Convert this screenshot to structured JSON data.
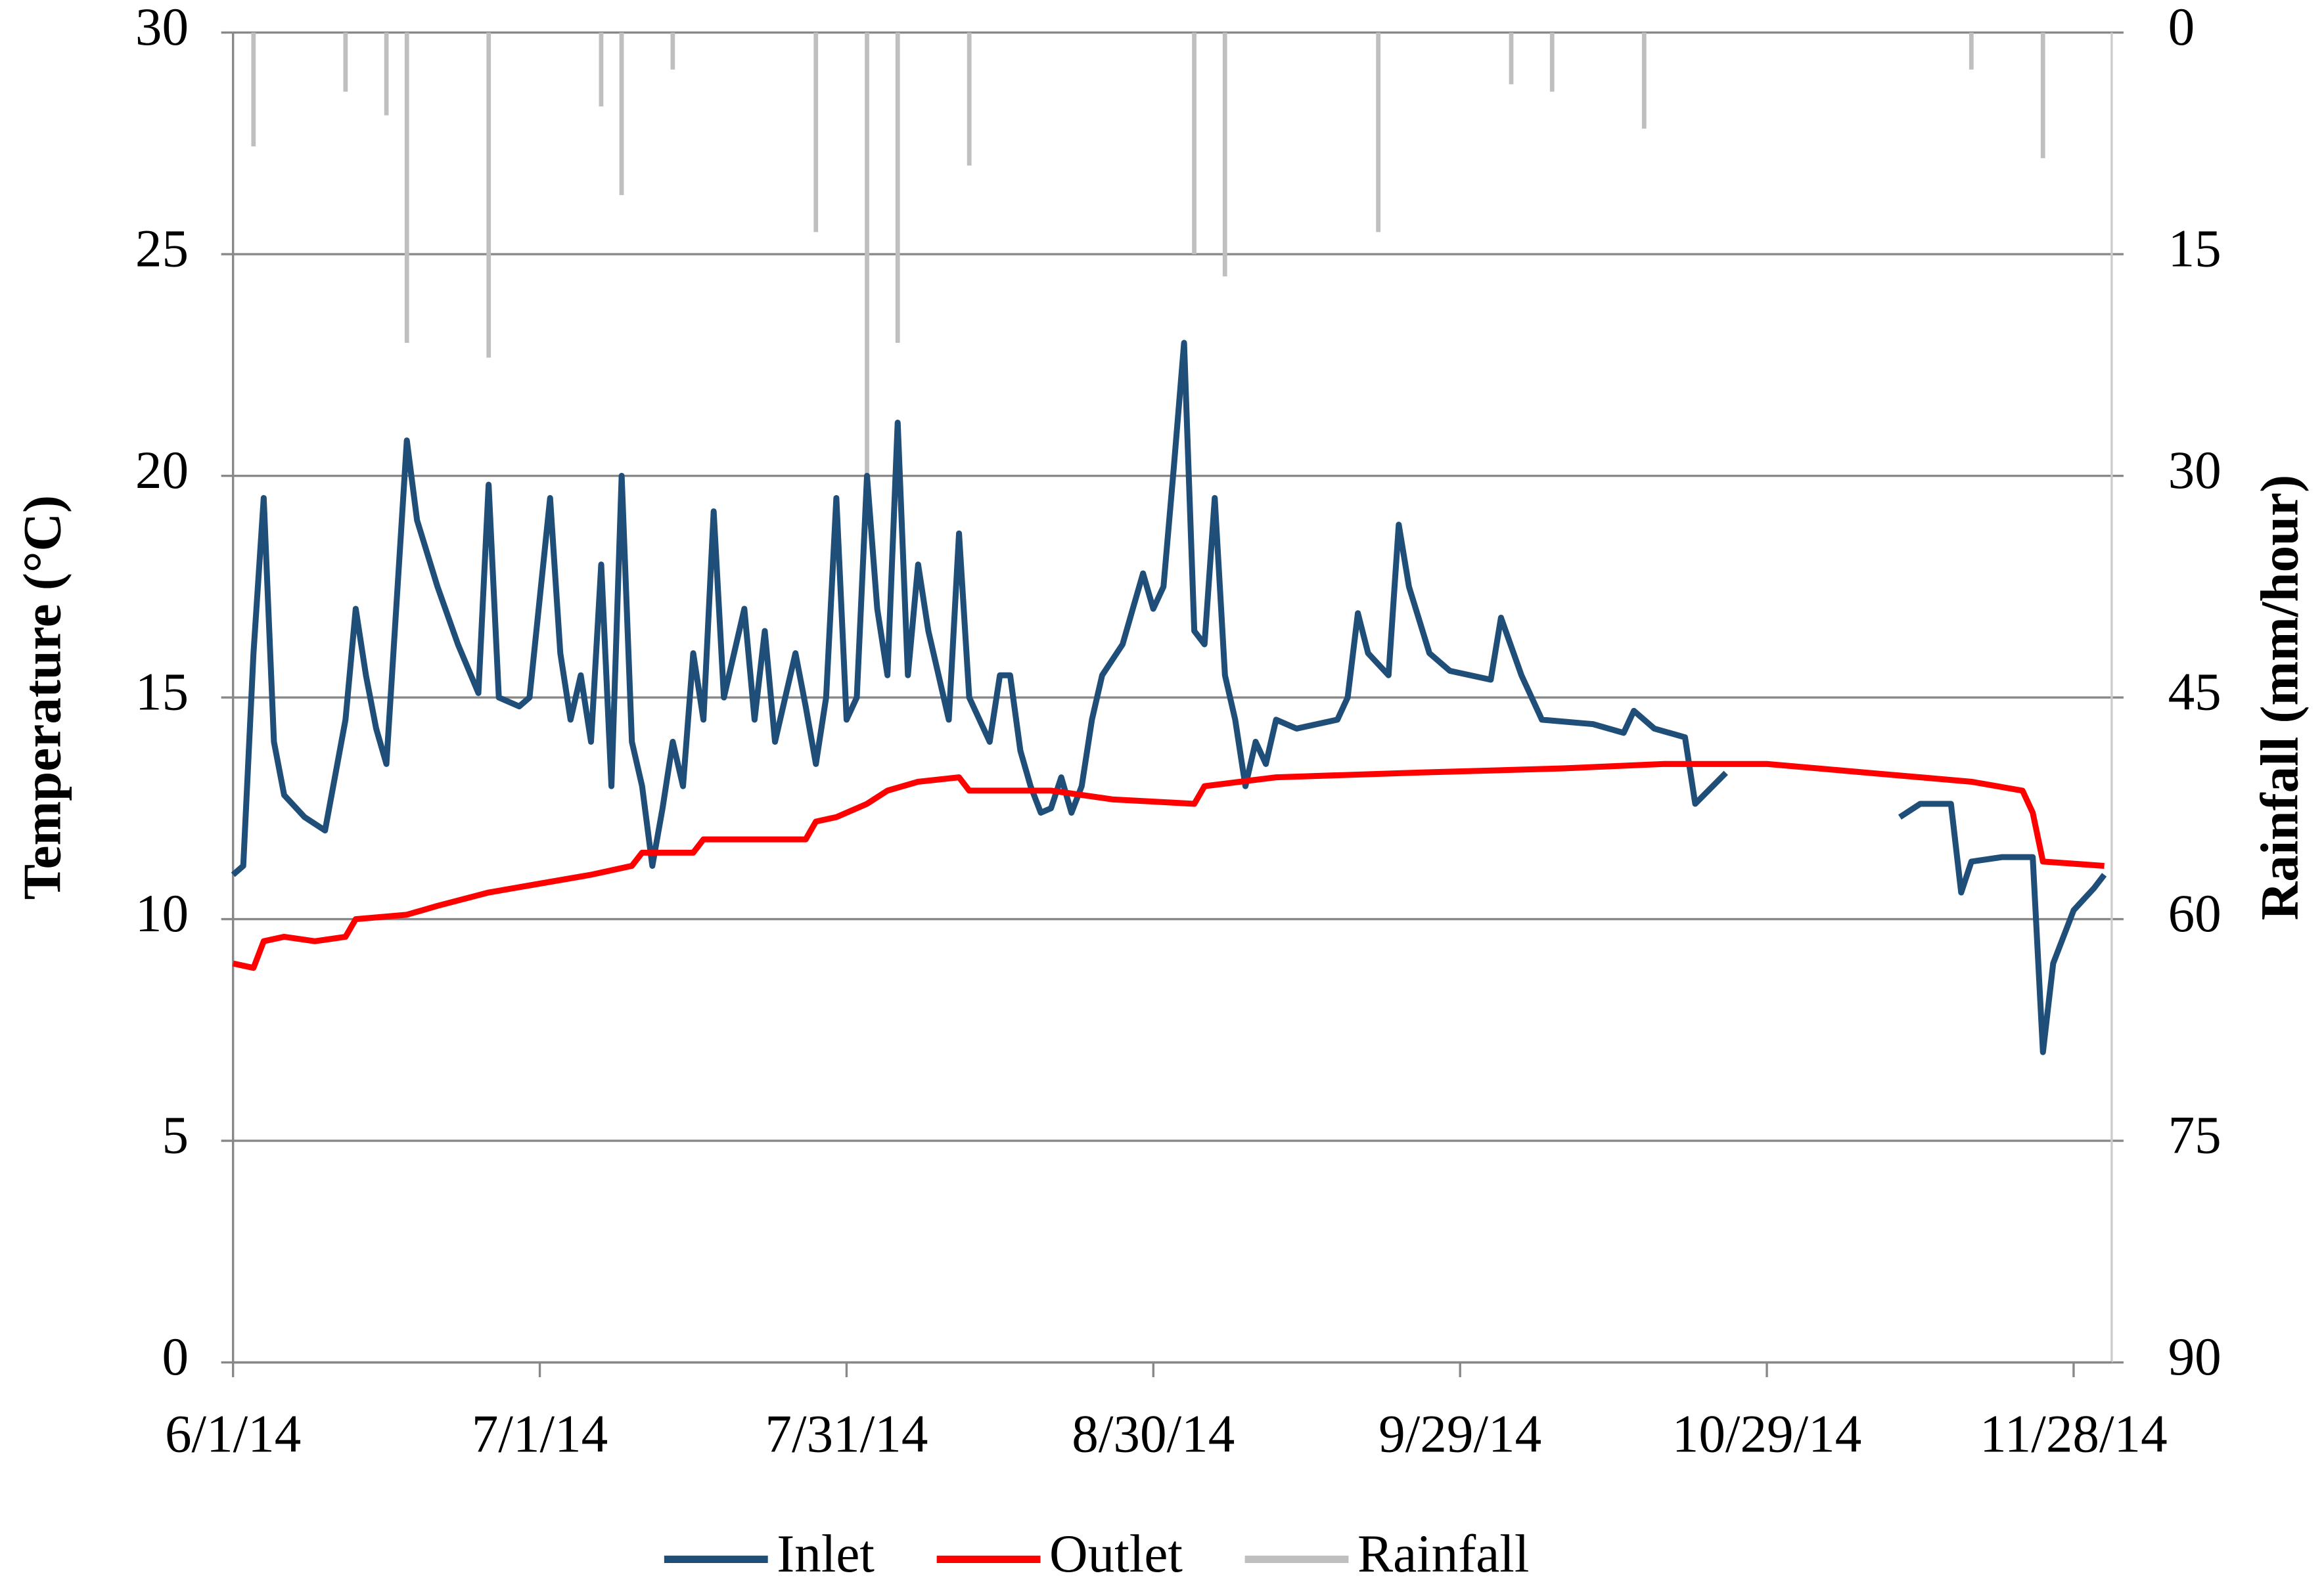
{
  "chart_data": {
    "type": "line",
    "ylabel": "Temperature (°C)",
    "y2label": "Rainfall (mm/hour)",
    "xlim": [
      "6/1/14",
      "12/1/14"
    ],
    "xticks": [
      "6/1/14",
      "7/1/14",
      "7/31/14",
      "8/30/14",
      "9/29/14",
      "10/29/14",
      "11/28/14"
    ],
    "ylim": [
      0,
      30
    ],
    "yticks": [
      0,
      5,
      10,
      15,
      20,
      25,
      30
    ],
    "y2lim": [
      90,
      0
    ],
    "y2ticks": [
      0,
      15,
      30,
      45,
      60,
      75,
      90
    ],
    "grid": true,
    "legend": "bottom",
    "series": [
      {
        "name": "Inlet",
        "color": "#1f4e79",
        "type": "line",
        "x": [
          "6/1/14",
          "6/2/14",
          "6/3/14",
          "6/4/14",
          "6/5/14",
          "6/6/14",
          "6/8/14",
          "6/10/14",
          "6/12/14",
          "6/13/14",
          "6/14/14",
          "6/15/14",
          "6/16/14",
          "6/18/14",
          "6/19/14",
          "6/21/14",
          "6/23/14",
          "6/25/14",
          "6/26/14",
          "6/27/14",
          "6/29/14",
          "6/30/14",
          "7/2/14",
          "7/3/14",
          "7/4/14",
          "7/5/14",
          "7/6/14",
          "7/7/14",
          "7/8/14",
          "7/9/14",
          "7/10/14",
          "7/11/14",
          "7/12/14",
          "7/13/14",
          "7/14/14",
          "7/15/14",
          "7/16/14",
          "7/17/14",
          "7/18/14",
          "7/19/14",
          "7/21/14",
          "7/22/14",
          "7/23/14",
          "7/24/14",
          "7/26/14",
          "7/27/14",
          "7/28/14",
          "7/29/14",
          "7/30/14",
          "7/31/14",
          "8/1/14",
          "8/2/14",
          "8/3/14",
          "8/4/14",
          "8/5/14",
          "8/6/14",
          "8/7/14",
          "8/8/14",
          "8/9/14",
          "8/10/14",
          "8/11/14",
          "8/12/14",
          "8/14/14",
          "8/15/14",
          "8/16/14",
          "8/17/14",
          "8/18/14",
          "8/19/14",
          "8/20/14",
          "8/21/14",
          "8/22/14",
          "8/23/14",
          "8/24/14",
          "8/25/14",
          "8/27/14",
          "8/28/14",
          "8/29/14",
          "8/30/14",
          "8/31/14",
          "9/1/14",
          "9/2/14",
          "9/3/14",
          "9/4/14",
          "9/5/14",
          "9/6/14",
          "9/7/14",
          "9/8/14",
          "9/9/14",
          "9/10/14",
          "9/11/14",
          "9/13/14",
          "9/17/14",
          "9/18/14",
          "9/19/14",
          "9/20/14",
          "9/22/14",
          "9/23/14",
          "9/24/14",
          "9/26/14",
          "9/28/14",
          "10/2/14",
          "10/3/14",
          "10/5/14",
          "10/7/14",
          "10/12/14",
          "10/15/14",
          "10/16/14",
          "10/18/14",
          "10/21/14",
          "10/22/14",
          "10/25/14",
          "11/1/14",
          "11/11/14",
          "11/13/14",
          "11/16/14",
          "11/17/14",
          "11/18/14",
          "11/21/14",
          "11/24/14",
          "11/25/14",
          "11/26/14",
          "11/28/14",
          "11/30/14",
          "12/1/14"
        ],
        "values": [
          11,
          11.2,
          16,
          19.5,
          14,
          12.8,
          12.3,
          12,
          14.5,
          17,
          15.5,
          14.3,
          13.5,
          20.8,
          19,
          17.5,
          16.2,
          15.1,
          19.8,
          15,
          14.8,
          15,
          19.5,
          16,
          14.5,
          15.5,
          14,
          18,
          13,
          20,
          14,
          13,
          11.2,
          12.5,
          14,
          13,
          16,
          14.5,
          19.2,
          15,
          17,
          14.5,
          16.5,
          14,
          16,
          14.8,
          13.5,
          15,
          19.5,
          14.5,
          15,
          20,
          17,
          15.5,
          21.2,
          15.5,
          18,
          16.5,
          15.5,
          14.5,
          18.7,
          15,
          14,
          15.5,
          15.5,
          13.8,
          13,
          12.4,
          12.5,
          13.2,
          12.4,
          13,
          14.5,
          15.5,
          16.2,
          17,
          17.8,
          17,
          17.5,
          20.2,
          23,
          16.5,
          16.2,
          19.5,
          15.5,
          14.5,
          13,
          14,
          13.5,
          14.5,
          14.3,
          14.5,
          15,
          16.9,
          16,
          15.5,
          18.9,
          17.5,
          16,
          15.6,
          15.4,
          16.8,
          15.5,
          14.5,
          14.4,
          14.2,
          14.7,
          14.3,
          14.1,
          12.6,
          13.3,
          null,
          12.3,
          12.6,
          12.6,
          10.6,
          11.3,
          11.4,
          11.4,
          7,
          9,
          10.2,
          10.7,
          11
        ]
      },
      {
        "name": "Outlet",
        "color": "#ff0000",
        "type": "line",
        "x": [
          "6/1/14",
          "6/3/14",
          "6/4/14",
          "6/6/14",
          "6/9/14",
          "6/12/14",
          "6/13/14",
          "6/18/14",
          "6/21/14",
          "6/26/14",
          "7/1/14",
          "7/6/14",
          "7/10/14",
          "7/11/14",
          "7/16/14",
          "7/17/14",
          "7/27/14",
          "7/28/14",
          "7/30/14",
          "8/2/14",
          "8/4/14",
          "8/7/14",
          "8/11/14",
          "8/12/14",
          "8/20/14",
          "8/26/14",
          "9/3/14",
          "9/4/14",
          "9/11/14",
          "9/24/14",
          "10/9/14",
          "10/19/14",
          "10/29/14",
          "11/8/14",
          "11/18/14",
          "11/23/14",
          "11/24/14",
          "11/25/14",
          "12/1/14"
        ],
        "values": [
          9,
          8.9,
          9.5,
          9.6,
          9.5,
          9.6,
          10,
          10.1,
          10.3,
          10.6,
          10.8,
          11,
          11.2,
          11.5,
          11.5,
          11.8,
          11.8,
          12.2,
          12.3,
          12.6,
          12.9,
          13.1,
          13.2,
          12.9,
          12.9,
          12.7,
          12.6,
          13,
          13.2,
          13.3,
          13.4,
          13.5,
          13.5,
          13.3,
          13.1,
          12.9,
          12.4,
          11.3,
          11.2
        ]
      },
      {
        "name": "Rainfall",
        "color": "#bfbfbf",
        "type": "bar",
        "axis": "y2",
        "x": [
          "6/3/14",
          "6/12/14",
          "6/16/14",
          "6/18/14",
          "6/26/14",
          "7/7/14",
          "7/9/14",
          "7/14/14",
          "7/28/14",
          "8/2/14",
          "8/5/14",
          "8/12/14",
          "9/3/14",
          "9/6/14",
          "9/21/14",
          "10/4/14",
          "10/8/14",
          "10/17/14",
          "11/18/14",
          "11/25/14"
        ],
        "values": [
          7.7,
          4,
          5.6,
          21,
          22,
          5,
          11,
          2.5,
          13.5,
          30,
          21,
          9,
          15,
          16.5,
          13.5,
          3.5,
          4,
          6.5,
          2.5,
          8.5
        ]
      }
    ]
  }
}
